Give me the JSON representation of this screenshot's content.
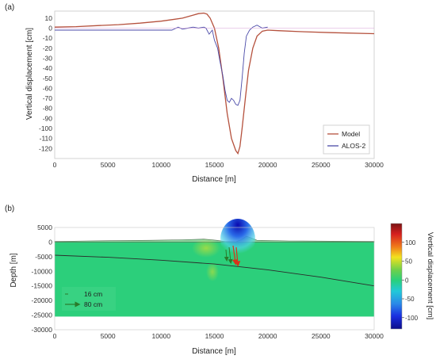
{
  "chart_data": [
    {
      "type": "line",
      "panel_label": "(a)",
      "xlabel": "Distance [m]",
      "ylabel": "Vertical displacement [cm]",
      "xlim": [
        0,
        30000
      ],
      "ylim": [
        -130,
        17
      ],
      "x_ticks": [
        "0",
        "5000",
        "10000",
        "15000",
        "20000",
        "25000",
        "30000"
      ],
      "y_ticks": [
        "10",
        "0",
        "-10",
        "-20",
        "-30",
        "-40",
        "-50",
        "-60",
        "-70",
        "-80",
        "-90",
        "-100",
        "-110",
        "-120"
      ],
      "x_tick_values": [
        0,
        5000,
        10000,
        15000,
        20000,
        25000,
        30000
      ],
      "y_tick_values": [
        10,
        0,
        -10,
        -20,
        -30,
        -40,
        -50,
        -60,
        -70,
        -80,
        -90,
        -100,
        -110,
        -120
      ],
      "grid": false,
      "legend_position": "bottom-right",
      "series": [
        {
          "name": "Model",
          "color": "#b5513d",
          "x": [
            0,
            2000,
            4000,
            6000,
            8000,
            10000,
            11000,
            12000,
            12500,
            13000,
            13500,
            14000,
            14300,
            14600,
            15000,
            15400,
            15800,
            16200,
            16600,
            17000,
            17200,
            17400,
            17600,
            17900,
            18200,
            18600,
            19000,
            19500,
            20000,
            21000,
            23000,
            26000,
            30000
          ],
          "y": [
            1,
            1.5,
            2.5,
            3.5,
            5,
            7,
            8.5,
            10,
            11.5,
            13,
            14.5,
            15,
            14,
            10,
            0,
            -20,
            -50,
            -85,
            -110,
            -122,
            -125,
            -118,
            -100,
            -70,
            -42,
            -20,
            -8,
            -3,
            -2,
            -2.5,
            -3.5,
            -4.5,
            -5.5
          ]
        },
        {
          "name": "ALOS-2",
          "color": "#4a4aa8",
          "x": [
            0,
            3000,
            6000,
            9000,
            11000,
            11600,
            12000,
            12500,
            13000,
            13500,
            14000,
            14200,
            14500,
            14800,
            15000,
            15300,
            15500,
            15800,
            16000,
            16200,
            16400,
            16600,
            16800,
            17000,
            17200,
            17400,
            17600,
            17800,
            18000,
            18300,
            18600,
            19000,
            19500,
            20000
          ],
          "y": [
            -2,
            -2,
            -2,
            -2,
            -2,
            1,
            -1,
            0,
            1,
            0,
            1,
            0,
            -6,
            -2,
            -12,
            -20,
            -32,
            -48,
            -62,
            -72,
            -74,
            -70,
            -72,
            -76,
            -77,
            -72,
            -50,
            -25,
            -8,
            -2,
            1,
            3,
            0,
            1
          ]
        }
      ]
    },
    {
      "type": "heatmap",
      "panel_label": "(b)",
      "xlabel": "Distance [m]",
      "ylabel": "Depth [m]",
      "xlim": [
        0,
        30000
      ],
      "ylim": [
        -30000,
        5000
      ],
      "x_ticks": [
        "0",
        "5000",
        "10000",
        "15000",
        "20000",
        "25000",
        "30000"
      ],
      "y_ticks": [
        "5000",
        "0",
        "-5000",
        "-10000",
        "-15000",
        "-20000",
        "-25000",
        "-30000"
      ],
      "x_tick_values": [
        0,
        5000,
        10000,
        15000,
        20000,
        25000,
        30000
      ],
      "y_tick_values": [
        5000,
        0,
        -5000,
        -10000,
        -15000,
        -20000,
        -25000,
        -30000
      ],
      "domain_bottom": -25500,
      "colorbar": {
        "label": "Vertical displacement [cm]",
        "range": [
          -130,
          150
        ],
        "ticks": [
          "100",
          "50",
          "0",
          "-50",
          "-100"
        ],
        "tick_values": [
          100,
          50,
          0,
          -50,
          -100
        ]
      },
      "legend_items": [
        "16 cm",
        "80 cm"
      ],
      "fault_line": {
        "x": [
          0,
          5000,
          10000,
          15000,
          20000,
          25000,
          30000
        ],
        "y": [
          -4500,
          -5200,
          -6200,
          -7500,
          -9500,
          -12000,
          -15000
        ]
      },
      "topography": {
        "x": [
          0,
          3000,
          6000,
          9000,
          12000,
          14000,
          15200,
          16000,
          17000,
          17500,
          18000,
          18400,
          19000,
          22000,
          26000,
          30000
        ],
        "y": [
          200,
          400,
          500,
          600,
          800,
          1000,
          600,
          200,
          100,
          800,
          2000,
          1500,
          600,
          400,
          300,
          200
        ]
      }
    }
  ]
}
